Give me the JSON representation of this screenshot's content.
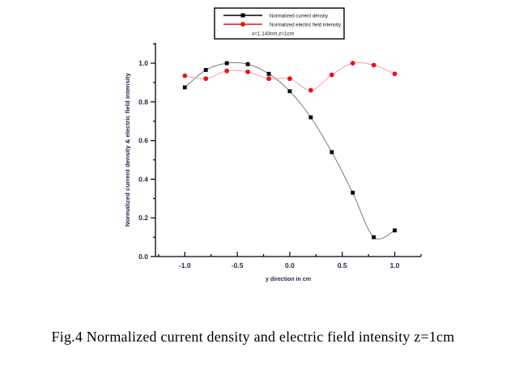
{
  "caption": "Fig.4 Normalized current density and electric field intensity z=1cm",
  "colors": {
    "background": "#ffffff",
    "axis": "#000000",
    "tick_label": "#26264d",
    "legend_text": "#111111",
    "black_series_marker": "#000000",
    "black_series_line": "#7a7a7a",
    "red_series_marker": "#e81414",
    "red_series_line": "#ff9d9d"
  },
  "chart_data": {
    "type": "line",
    "title": "",
    "xlabel": "y direction in cm",
    "ylabel": "Normalized current density & electric field intensity",
    "grid": false,
    "legend_position": "top-center",
    "legend_note": "x=1.143cm,z=1cm",
    "x_axis": {
      "range": [
        -1.28,
        1.25
      ],
      "major_ticks": [
        -1.0,
        -0.5,
        0.0,
        0.5,
        1.0
      ],
      "tick_labels": [
        "-1.0",
        "-0.5",
        "0.0",
        "0.5",
        "1.0"
      ],
      "minor_step": 0.25
    },
    "y_axis": {
      "range": [
        0,
        1.105
      ],
      "major_ticks": [
        0.0,
        0.2,
        0.4,
        0.6,
        0.8,
        1.0
      ],
      "tick_labels": [
        "0.0",
        "0.2",
        "0.4",
        "0.6",
        "0.8",
        "1.0"
      ],
      "minor_step": 0.1
    },
    "x": [
      -1.0,
      -0.8,
      -0.6,
      -0.4,
      -0.2,
      0.0,
      0.2,
      0.4,
      0.6,
      0.8,
      1.0
    ],
    "series": [
      {
        "name": "Normalized current density",
        "marker": "square",
        "values": [
          0.875,
          0.965,
          1.0,
          0.995,
          0.945,
          0.855,
          0.72,
          0.54,
          0.33,
          0.1,
          0.135
        ]
      },
      {
        "name": "Normalized electric field intensity",
        "marker": "circle",
        "values": [
          0.935,
          0.92,
          0.96,
          0.955,
          0.92,
          0.92,
          0.86,
          0.94,
          1.0,
          0.99,
          0.945
        ]
      }
    ]
  }
}
